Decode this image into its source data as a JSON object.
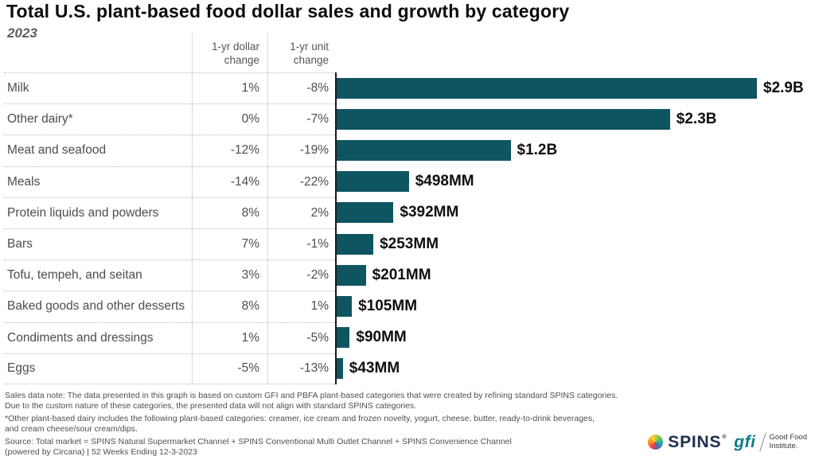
{
  "header": {
    "title": "Total U.S. plant-based food dollar sales and growth by category",
    "subtitle": "2023"
  },
  "table": {
    "columns": {
      "dollar_change": "1-yr dollar\nchange",
      "unit_change": "1-yr unit\nchange"
    }
  },
  "chart_data": {
    "type": "bar",
    "orientation": "horizontal",
    "title": "Total U.S. plant-based food dollar sales and growth by category",
    "subtitle": "2023",
    "categories": [
      "Milk",
      "Other dairy*",
      "Meat and seafood",
      "Meals",
      "Protein liquids and powders",
      "Bars",
      "Tofu, tempeh, and seitan",
      "Baked goods and other desserts",
      "Condiments and dressings",
      "Eggs"
    ],
    "values_mm": [
      2900,
      2300,
      1200,
      498,
      392,
      253,
      201,
      105,
      90,
      43
    ],
    "value_labels": [
      "$2.9B",
      "$2.3B",
      "$1.2B",
      "$498MM",
      "$392MM",
      "$253MM",
      "$201MM",
      "$105MM",
      "$90MM",
      "$43MM"
    ],
    "dollar_change_pct": [
      "1%",
      "0%",
      "-12%",
      "-14%",
      "8%",
      "7%",
      "3%",
      "8%",
      "1%",
      "-5%"
    ],
    "unit_change_pct": [
      "-8%",
      "-7%",
      "-19%",
      "-22%",
      "2%",
      "-1%",
      "-2%",
      "1%",
      "-5%",
      "-13%"
    ],
    "bar_color": "#0e5561",
    "xlim": [
      0,
      3200
    ],
    "grid": false,
    "legend": "none"
  },
  "footer": {
    "notes": [
      "Sales data note: The data presented in this graph is based on custom GFI and PBFA plant-based categories that were created by refining standard SPINS categories.\nDue to the custom nature of these categories, the presented data will not align with standard SPINS categories.",
      "*Other plant-based dairy includes the following plant-based categories: creamer, ice cream and frozen novelty, yogurt, cheese, butter, ready-to-drink beverages,\nand cream cheese/sour cream/dips.",
      "Source: Total market = SPINS Natural Supermarket Channel + SPINS Conventional Multi Outlet Channel + SPINS Convenience Channel\n(powered by Circana) | 52 Weeks Ending 12-3-2023"
    ]
  },
  "logos": {
    "spins": "SPINS",
    "spins_reg": "®",
    "gfi": "gfi",
    "gfi_org": "Good Food\nInstitute."
  },
  "colors": {
    "bar_teal": "#0e5561",
    "spins_navy": "#20304f",
    "gfi_teal": "#0b7d85"
  }
}
